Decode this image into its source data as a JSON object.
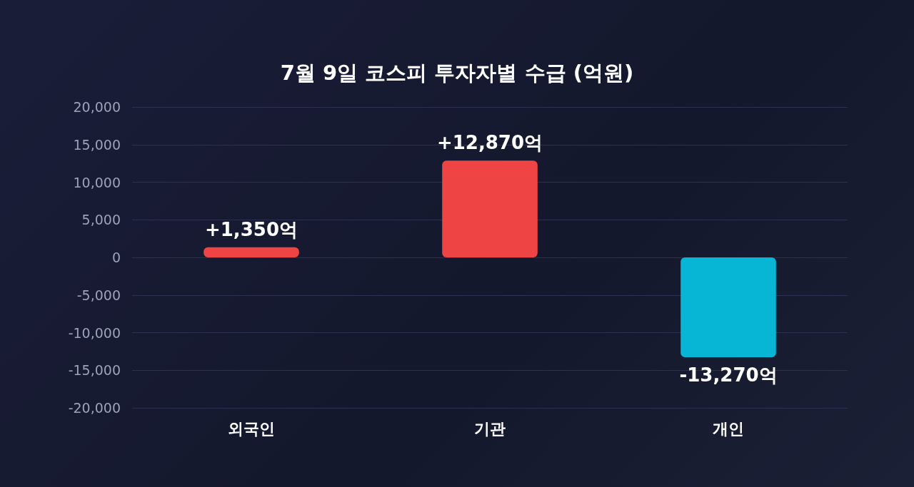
{
  "chart_data": {
    "type": "bar",
    "title": "7월 9일 코스피 투자자별 수급 (억원)",
    "categories": [
      "외국인",
      "기관",
      "개인"
    ],
    "values": [
      1350,
      12870,
      -13270
    ],
    "colors": [
      "#ef4444",
      "#ef4444",
      "#06b6d4"
    ],
    "value_labels": [
      "+1,350억",
      "+12,870억",
      "-13,270억"
    ],
    "ylim": [
      -20000,
      20000
    ],
    "yticks": [
      {
        "value": -20000,
        "label": "-20,000"
      },
      {
        "value": -15000,
        "label": "-15,000"
      },
      {
        "value": -10000,
        "label": "-10,000"
      },
      {
        "value": -5000,
        "label": "-5,000"
      },
      0,
      {
        "value": 5000,
        "label": "5,000"
      },
      {
        "value": 10000,
        "label": "10,000"
      },
      {
        "value": 15000,
        "label": "15,000"
      },
      {
        "value": 20000,
        "label": "20,000"
      }
    ],
    "grid": "y"
  }
}
